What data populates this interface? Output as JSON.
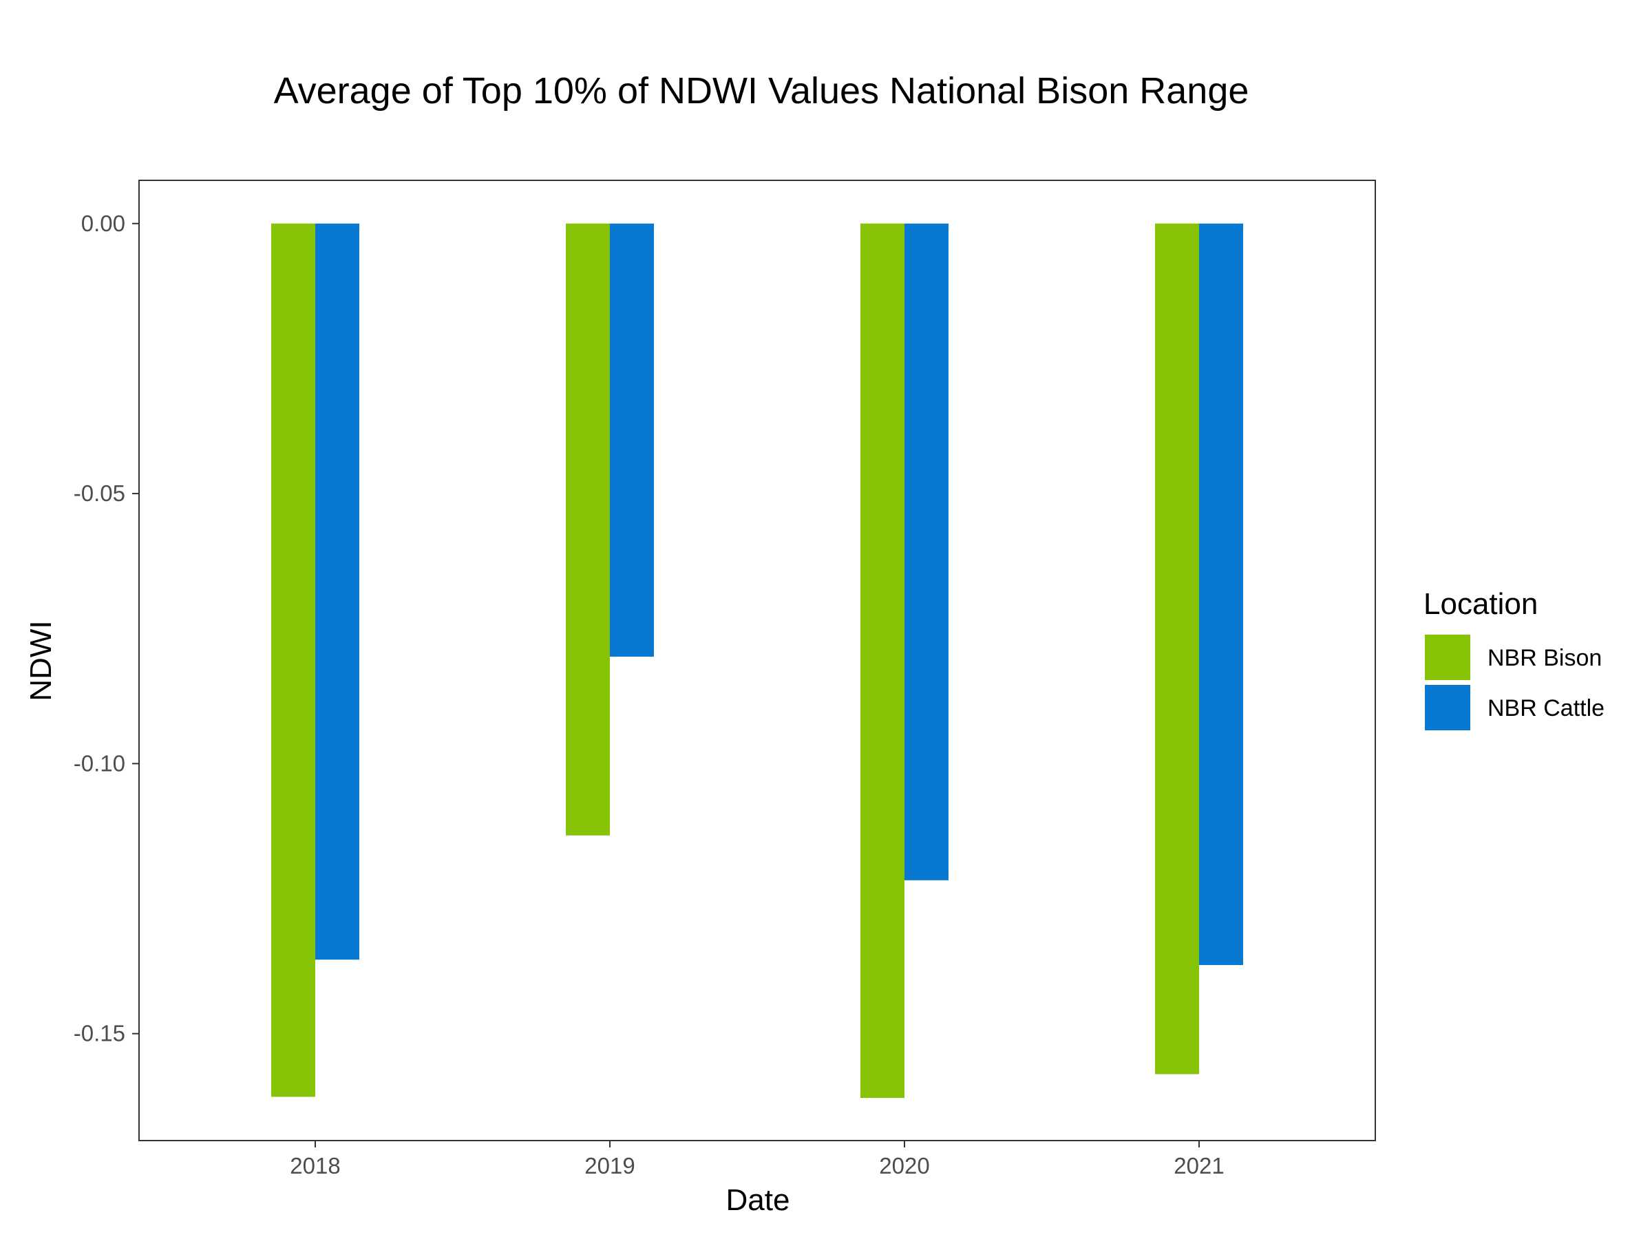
{
  "chart_data": {
    "type": "bar",
    "title": "Average of Top 10% of NDWI Values National Bison Range",
    "xlabel": "Date",
    "ylabel": "NDWI",
    "categories": [
      "2018",
      "2019",
      "2020",
      "2021"
    ],
    "series": [
      {
        "name": "NBR Bison",
        "color": "#86c206",
        "values": [
          -0.1617,
          -0.1133,
          -0.1619,
          -0.1575
        ]
      },
      {
        "name": "NBR Cattle",
        "color": "#0779d2",
        "values": [
          -0.1363,
          -0.0802,
          -0.1216,
          -0.1373
        ]
      }
    ],
    "yticks": [
      0.0,
      -0.05,
      -0.1,
      -0.15
    ],
    "ytick_labels": [
      "0.00",
      "-0.05",
      "-0.10",
      "-0.15"
    ],
    "ylim": [
      -0.1698,
      0.008
    ],
    "grid": false,
    "legend": {
      "title": "Location",
      "position": "right"
    }
  }
}
